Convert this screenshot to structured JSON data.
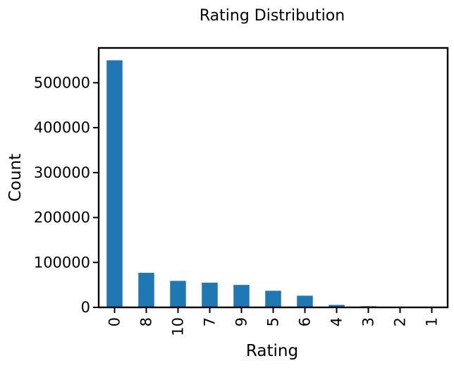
{
  "chart_data": {
    "type": "bar",
    "title": "Rating Distribution",
    "xlabel": "Rating",
    "ylabel": "Count",
    "categories": [
      "0",
      "8",
      "10",
      "7",
      "9",
      "5",
      "6",
      "4",
      "3",
      "2",
      "1"
    ],
    "values": [
      550000,
      77000,
      59000,
      55000,
      50000,
      37000,
      26000,
      5500,
      2600,
      1300,
      750
    ],
    "ylim": [
      0,
      577500
    ],
    "yticks": [
      0,
      100000,
      200000,
      300000,
      400000,
      500000
    ],
    "ytick_labels": [
      "0",
      "100000",
      "200000",
      "300000",
      "400000",
      "500000"
    ],
    "bar_color": "#1f77b4",
    "grid": false
  }
}
